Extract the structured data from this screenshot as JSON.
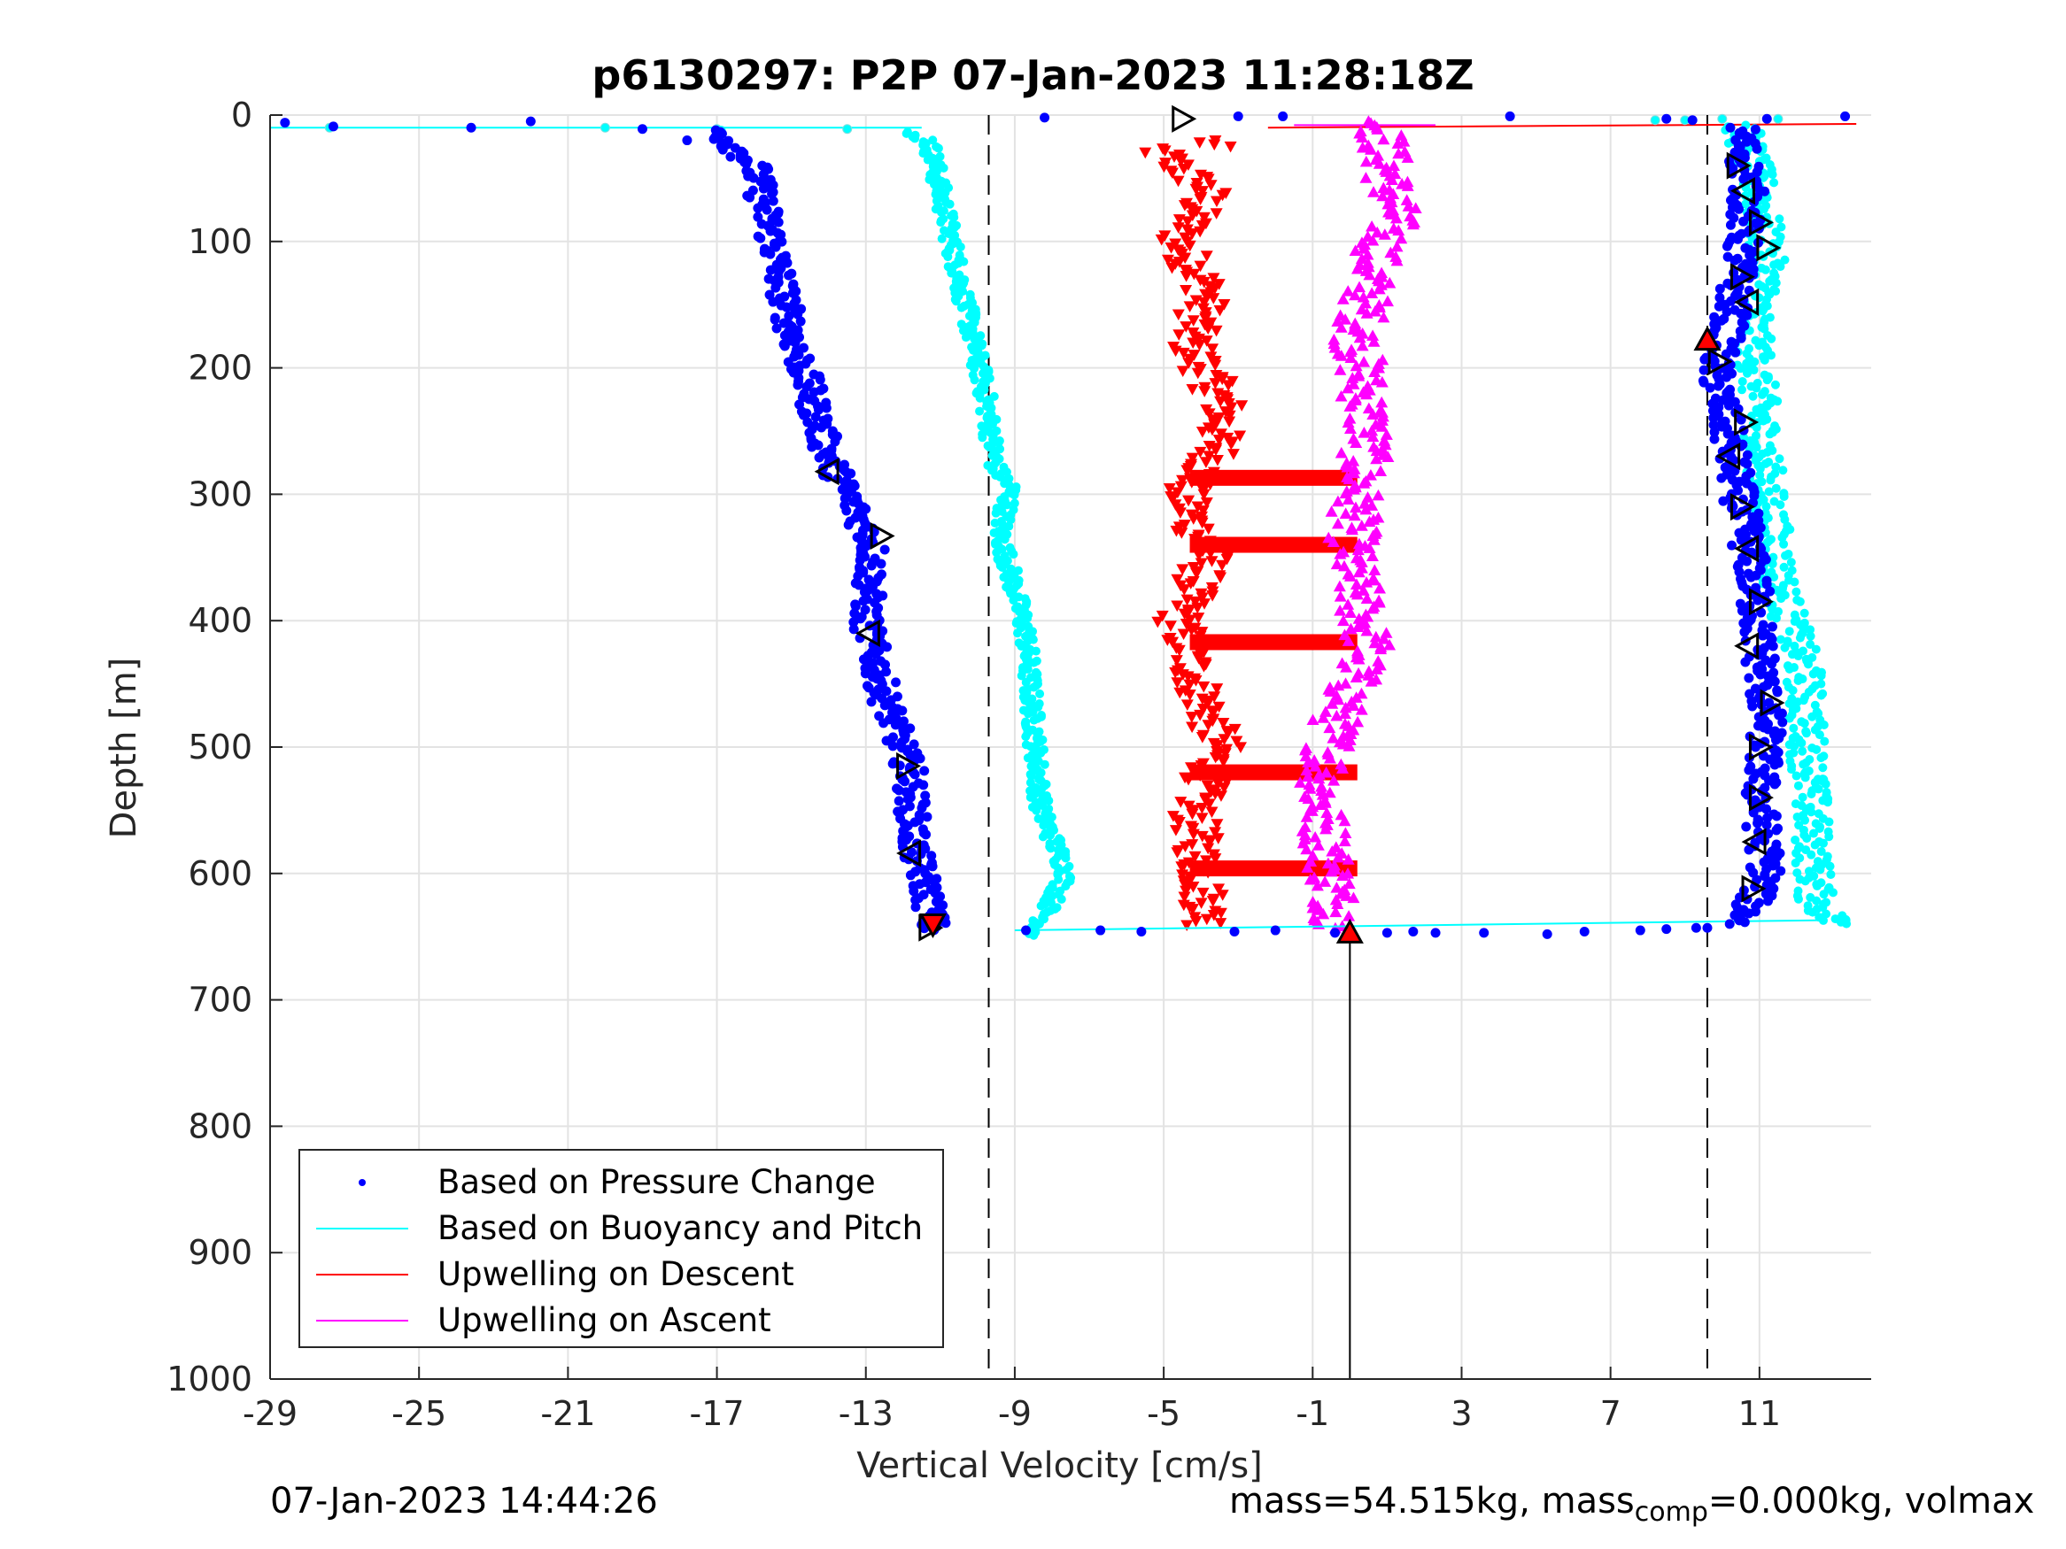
{
  "chart_data": {
    "type": "scatter",
    "title": "p6130297: P2P 07-Jan-2023 11:28:18Z",
    "xlabel": "Vertical Velocity [cm/s]",
    "ylabel": "Depth [m]",
    "xlim": [
      -29,
      14
    ],
    "ylim": [
      0,
      1000
    ],
    "y_reversed": true,
    "grid": true,
    "xticks": [
      -29,
      -25,
      -21,
      -17,
      -13,
      -9,
      -5,
      -1,
      3,
      7,
      11
    ],
    "yticks": [
      0,
      100,
      200,
      300,
      400,
      500,
      600,
      700,
      800,
      900,
      1000
    ],
    "reference_lines": {
      "dashed_x": [
        -9.7,
        9.6
      ],
      "solid_x": [
        0
      ],
      "solid_x_depth_range": [
        645,
        1000
      ]
    },
    "legend_position": "bottom-left",
    "series": [
      {
        "name": "Based on Pressure Change",
        "color": "#0000ff",
        "style": "dots",
        "descent_profile": [
          [
            -17,
            12
          ],
          [
            -16,
            40
          ],
          [
            -15.5,
            100
          ],
          [
            -15,
            170
          ],
          [
            -14.5,
            220
          ],
          [
            -14,
            270
          ],
          [
            -13.5,
            300
          ],
          [
            -12.8,
            340
          ],
          [
            -13,
            400
          ],
          [
            -12.5,
            460
          ],
          [
            -11.8,
            520
          ],
          [
            -11.7,
            580
          ],
          [
            -11.3,
            620
          ],
          [
            -11.2,
            645
          ]
        ],
        "ascent_profile": [
          [
            10.5,
            10
          ],
          [
            10.7,
            60
          ],
          [
            10.5,
            110
          ],
          [
            10.2,
            165
          ],
          [
            9.8,
            200
          ],
          [
            10.2,
            260
          ],
          [
            10.5,
            310
          ],
          [
            10.8,
            360
          ],
          [
            11,
            420
          ],
          [
            11.2,
            480
          ],
          [
            11,
            540
          ],
          [
            11.2,
            600
          ],
          [
            10.5,
            640
          ]
        ],
        "surface_points": [
          [
            -28.6,
            6
          ],
          [
            -27.3,
            9
          ],
          [
            -23.6,
            10
          ],
          [
            -22,
            5
          ],
          [
            -19,
            11
          ],
          [
            -17.8,
            20
          ],
          [
            -8.2,
            2
          ],
          [
            -3,
            1
          ],
          [
            -1.8,
            1
          ],
          [
            4.3,
            1
          ],
          [
            8.5,
            3
          ],
          [
            9.2,
            4
          ],
          [
            11.2,
            3
          ],
          [
            13.3,
            1
          ]
        ],
        "bottom_points": [
          [
            -8.7,
            645
          ],
          [
            -6.7,
            645
          ],
          [
            -5.6,
            646
          ],
          [
            -3.1,
            646
          ],
          [
            -2,
            645
          ],
          [
            -0.4,
            647
          ],
          [
            1,
            647
          ],
          [
            1.7,
            646
          ],
          [
            2.3,
            647
          ],
          [
            3.6,
            647
          ],
          [
            5.3,
            648
          ],
          [
            6.3,
            646
          ],
          [
            7.8,
            645
          ],
          [
            8.5,
            644
          ],
          [
            9.3,
            643
          ],
          [
            9.6,
            643
          ]
        ]
      },
      {
        "name": "Based on Buoyancy and Pitch",
        "color": "#00ffff",
        "style": "line-dots",
        "transit_lines": [
          [
            [
              -29,
              10
            ],
            [
              -11.5,
              10
            ]
          ],
          [
            [
              -9,
              645
            ],
            [
              12.7,
              637
            ]
          ]
        ],
        "descent_profile": [
          [
            -17,
            12
          ],
          [
            -12.2,
            12
          ],
          [
            -11.3,
            20
          ],
          [
            -11,
            60
          ],
          [
            -10.4,
            140
          ],
          [
            -9.8,
            220
          ],
          [
            -9.5,
            280
          ],
          [
            -9.1,
            295
          ],
          [
            -9.4,
            330
          ],
          [
            -8.7,
            410
          ],
          [
            -8.5,
            480
          ],
          [
            -8.3,
            550
          ],
          [
            -7.6,
            600
          ],
          [
            -8.5,
            650
          ]
        ],
        "ascent_profile": [
          [
            10.5,
            8
          ],
          [
            11,
            60
          ],
          [
            11.2,
            120
          ],
          [
            10.8,
            170
          ],
          [
            11,
            230
          ],
          [
            11.2,
            300
          ],
          [
            11.6,
            380
          ],
          [
            12.2,
            440
          ],
          [
            12.3,
            500
          ],
          [
            12.4,
            560
          ],
          [
            12.5,
            620
          ],
          [
            13,
            640
          ]
        ],
        "extremes": [
          [
            12.7,
            526
          ],
          [
            13.3,
            637
          ]
        ]
      },
      {
        "name": "Upwelling on Descent",
        "color": "#ff0000",
        "style": "down-triangles",
        "profile": [
          [
            -5.3,
            25
          ],
          [
            -3.8,
            60
          ],
          [
            -4.6,
            100
          ],
          [
            -3.8,
            140
          ],
          [
            -4.3,
            180
          ],
          [
            -3.4,
            230
          ],
          [
            -3.6,
            270
          ],
          [
            -4.5,
            300
          ],
          [
            -3.8,
            350
          ],
          [
            -4.6,
            400
          ],
          [
            -4.1,
            450
          ],
          [
            -3.5,
            500
          ],
          [
            -4.2,
            550
          ],
          [
            -4,
            600
          ],
          [
            -3.8,
            640
          ]
        ],
        "surface_line": [
          [
            -2.2,
            10
          ],
          [
            13.6,
            7
          ]
        ],
        "crossbars_depths": [
          287,
          340,
          417,
          520,
          596
        ]
      },
      {
        "name": "Upwelling on Ascent",
        "color": "#ff00ff",
        "style": "up-triangles",
        "profile": [
          [
            0.8,
            5
          ],
          [
            1.2,
            80
          ],
          [
            0.6,
            120
          ],
          [
            0.2,
            180
          ],
          [
            0.5,
            250
          ],
          [
            0.2,
            300
          ],
          [
            0,
            350
          ],
          [
            0.5,
            420
          ],
          [
            -0.4,
            480
          ],
          [
            -0.8,
            540
          ],
          [
            -0.5,
            600
          ],
          [
            -0.3,
            640
          ]
        ],
        "surface_line": [
          [
            -1.5,
            8
          ],
          [
            2.3,
            8
          ]
        ]
      }
    ],
    "markers": {
      "open_triangles": [
        [
          -4.5,
          3,
          "right"
        ],
        [
          -14,
          282,
          "left"
        ],
        [
          -12.6,
          333,
          "right"
        ],
        [
          -12.9,
          410,
          "left"
        ],
        [
          -11.9,
          515,
          "right"
        ],
        [
          -11.8,
          584,
          "left"
        ],
        [
          -11.3,
          643,
          "right"
        ],
        [
          10.4,
          40,
          "right"
        ],
        [
          10.6,
          60,
          "left"
        ],
        [
          11,
          85,
          "right"
        ],
        [
          11.2,
          105,
          "right"
        ],
        [
          10.5,
          128,
          "right"
        ],
        [
          10.7,
          148,
          "left"
        ],
        [
          9.9,
          195,
          "right"
        ],
        [
          10.6,
          243,
          "right"
        ],
        [
          10.2,
          270,
          "left"
        ],
        [
          10.5,
          310,
          "right"
        ],
        [
          10.7,
          343,
          "left"
        ],
        [
          11,
          385,
          "right"
        ],
        [
          10.7,
          420,
          "left"
        ],
        [
          11.3,
          465,
          "right"
        ],
        [
          11,
          500,
          "right"
        ],
        [
          11,
          540,
          "right"
        ],
        [
          10.9,
          575,
          "left"
        ],
        [
          10.8,
          612,
          "right"
        ]
      ],
      "red_filled": [
        [
          -11.2,
          640,
          "down"
        ],
        [
          9.6,
          178,
          "up"
        ],
        [
          0,
          647,
          "up"
        ]
      ]
    }
  },
  "labels": {
    "title": "p6130297: P2P 07-Jan-2023 11:28:18Z",
    "xlabel": "Vertical Velocity [cm/s]",
    "ylabel": "Depth [m]",
    "timestamp": "07-Jan-2023 14:44:26",
    "mass_prefix": "mass=54.515kg, mass",
    "mass_subscript": "comp",
    "mass_suffix": "=0.000kg, volmax"
  },
  "legend": [
    {
      "label": "Based on Pressure Change",
      "color": "#0000ff",
      "kind": "dot"
    },
    {
      "label": "Based on Buoyancy and Pitch",
      "color": "#00ffff",
      "kind": "line"
    },
    {
      "label": "Upwelling on Descent",
      "color": "#ff0000",
      "kind": "line"
    },
    {
      "label": "Upwelling on Ascent",
      "color": "#ff00ff",
      "kind": "line"
    }
  ]
}
